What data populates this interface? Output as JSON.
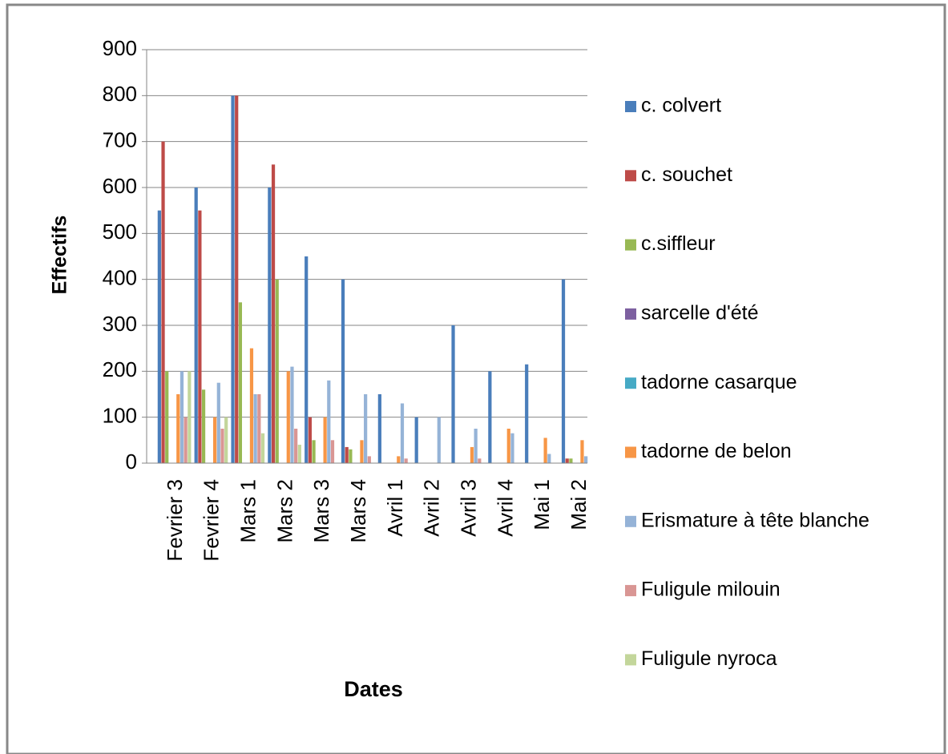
{
  "chart_data": {
    "type": "bar",
    "y_label": "Effectifs",
    "x_label": "Dates",
    "categories": [
      "Fevrier 3",
      "Fevrier 4",
      "Mars 1",
      "Mars 2",
      "Mars 3",
      "Mars 4",
      "Avril 1",
      "Avril 2",
      "Avril 3",
      "Avril 4",
      "Mai 1",
      "Mai 2"
    ],
    "series": [
      {
        "name": "c. colvert",
        "color": "#4a7ebb",
        "values": [
          550,
          600,
          800,
          600,
          450,
          400,
          150,
          100,
          300,
          200,
          215,
          400
        ]
      },
      {
        "name": "c. souchet",
        "color": "#be4b48",
        "values": [
          700,
          550,
          800,
          650,
          100,
          35,
          0,
          0,
          0,
          0,
          0,
          10
        ]
      },
      {
        "name": "c.siffleur",
        "color": "#98b954",
        "values": [
          200,
          160,
          350,
          400,
          50,
          30,
          0,
          0,
          0,
          0,
          0,
          10
        ]
      },
      {
        "name": "sarcelle d'été",
        "color": "#7d60a0",
        "values": [
          0,
          0,
          0,
          0,
          0,
          0,
          0,
          0,
          0,
          0,
          0,
          0
        ]
      },
      {
        "name": "tadorne casarque",
        "color": "#46aac5",
        "values": [
          0,
          0,
          0,
          0,
          0,
          0,
          0,
          0,
          0,
          0,
          0,
          0
        ]
      },
      {
        "name": "tadorne de belon",
        "color": "#f79646",
        "values": [
          150,
          100,
          250,
          200,
          100,
          50,
          15,
          0,
          35,
          75,
          55,
          50
        ]
      },
      {
        "name": "Erismature à tête blanche",
        "color": "#95b3d7",
        "values": [
          200,
          175,
          150,
          210,
          180,
          150,
          130,
          100,
          75,
          65,
          20,
          15
        ]
      },
      {
        "name": "Fuligule milouin",
        "color": "#d99694",
        "values": [
          100,
          75,
          150,
          75,
          50,
          15,
          10,
          0,
          10,
          0,
          0,
          0
        ]
      },
      {
        "name": "Fuligule nyroca",
        "color": "#c3d69b",
        "values": [
          200,
          100,
          65,
          40,
          0,
          0,
          0,
          0,
          0,
          0,
          0,
          0
        ]
      }
    ],
    "ylim": [
      0,
      900
    ],
    "yticks": [
      0,
      100,
      200,
      300,
      400,
      500,
      600,
      700,
      800,
      900
    ],
    "grid": true,
    "legend": "right"
  }
}
